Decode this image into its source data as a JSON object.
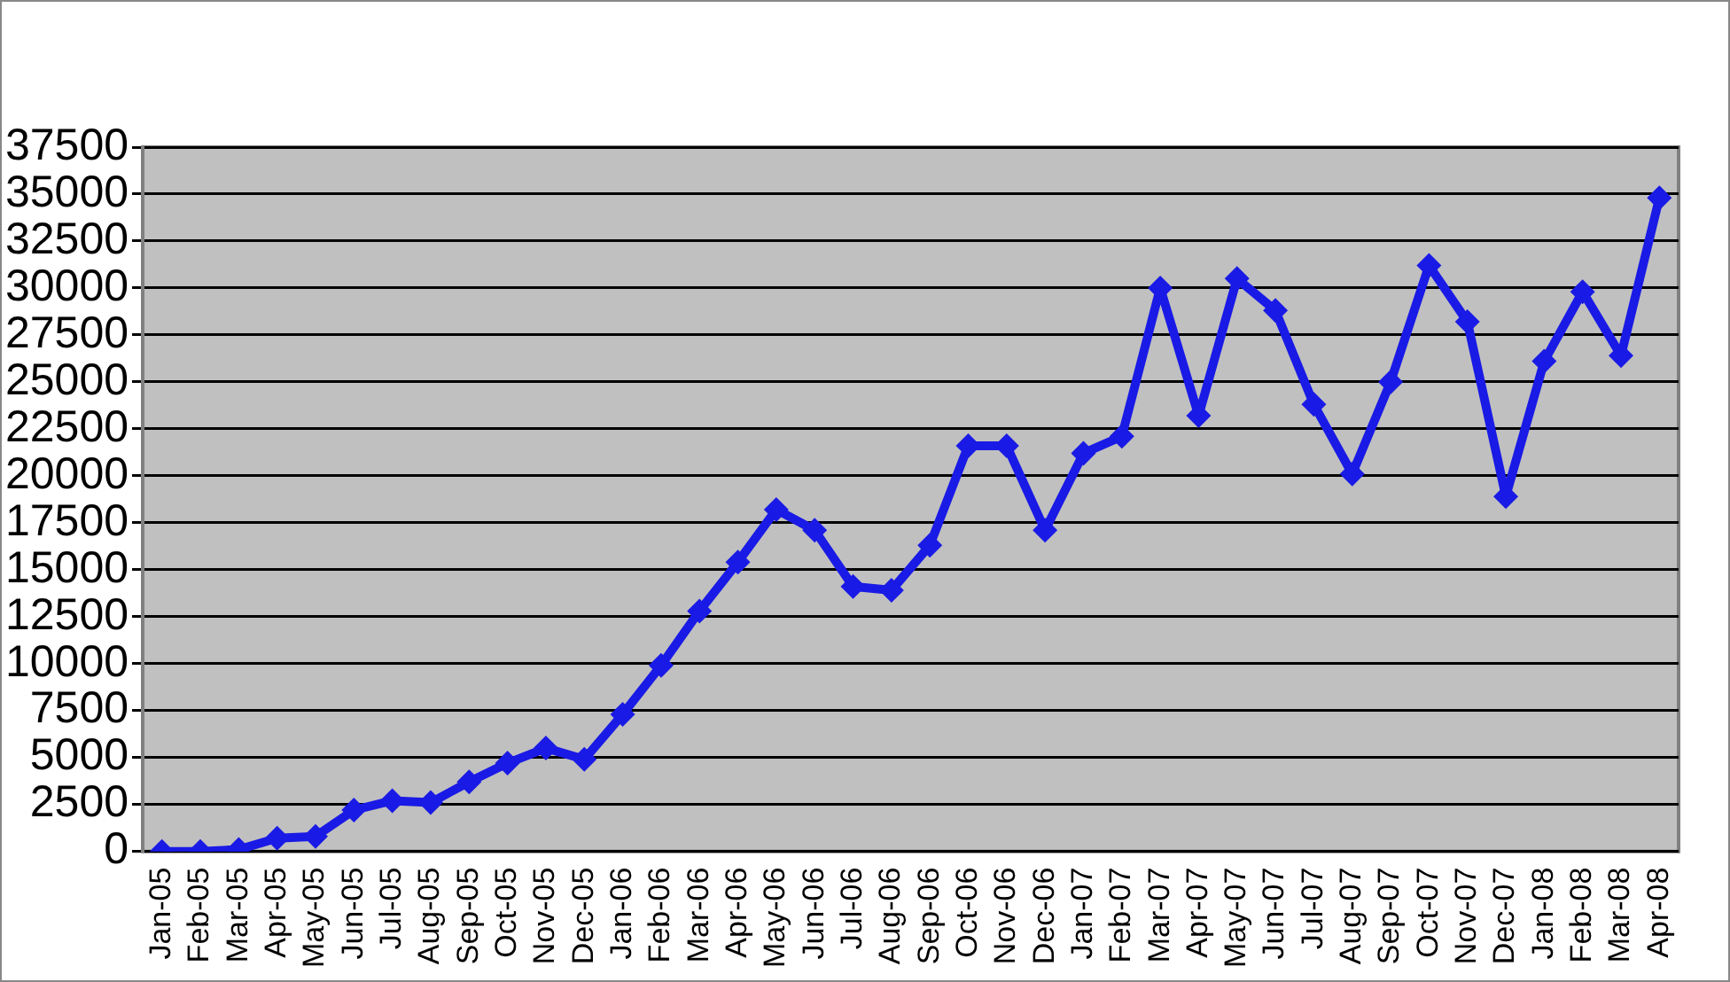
{
  "chart_data": {
    "type": "line",
    "categories": [
      "Jan-05",
      "Feb-05",
      "Mar-05",
      "Apr-05",
      "May-05",
      "Jun-05",
      "Jul-05",
      "Aug-05",
      "Sep-05",
      "Oct-05",
      "Nov-05",
      "Dec-05",
      "Jan-06",
      "Feb-06",
      "Mar-06",
      "Apr-06",
      "May-06",
      "Jun-06",
      "Jul-06",
      "Aug-06",
      "Sep-06",
      "Oct-06",
      "Nov-06",
      "Dec-06",
      "Jan-07",
      "Feb-07",
      "Mar-07",
      "Apr-07",
      "May-07",
      "Jun-07",
      "Jul-07",
      "Aug-07",
      "Sep-07",
      "Oct-07",
      "Nov-07",
      "Dec-07",
      "Jan-08",
      "Feb-08",
      "Mar-08",
      "Apr-08"
    ],
    "series": [
      {
        "color": "#1a1ae6",
        "values": [
          0,
          0,
          100,
          700,
          800,
          2200,
          2700,
          2600,
          3700,
          4700,
          5500,
          4900,
          7300,
          9900,
          12800,
          15400,
          18200,
          17100,
          14100,
          13900,
          16300,
          21600,
          21600,
          17100,
          21200,
          22100,
          30000,
          23200,
          30500,
          28800,
          23800,
          20100,
          25000,
          31200,
          28200,
          18900,
          26100,
          29800,
          26400,
          34800
        ]
      }
    ],
    "ylim": [
      0,
      37500
    ],
    "yticks": [
      0,
      2500,
      5000,
      7500,
      10000,
      12500,
      15000,
      17500,
      20000,
      22500,
      25000,
      27500,
      30000,
      32500,
      35000,
      37500
    ],
    "grid": "y",
    "legend": false,
    "marker": "diamond",
    "line_style": "solid"
  }
}
